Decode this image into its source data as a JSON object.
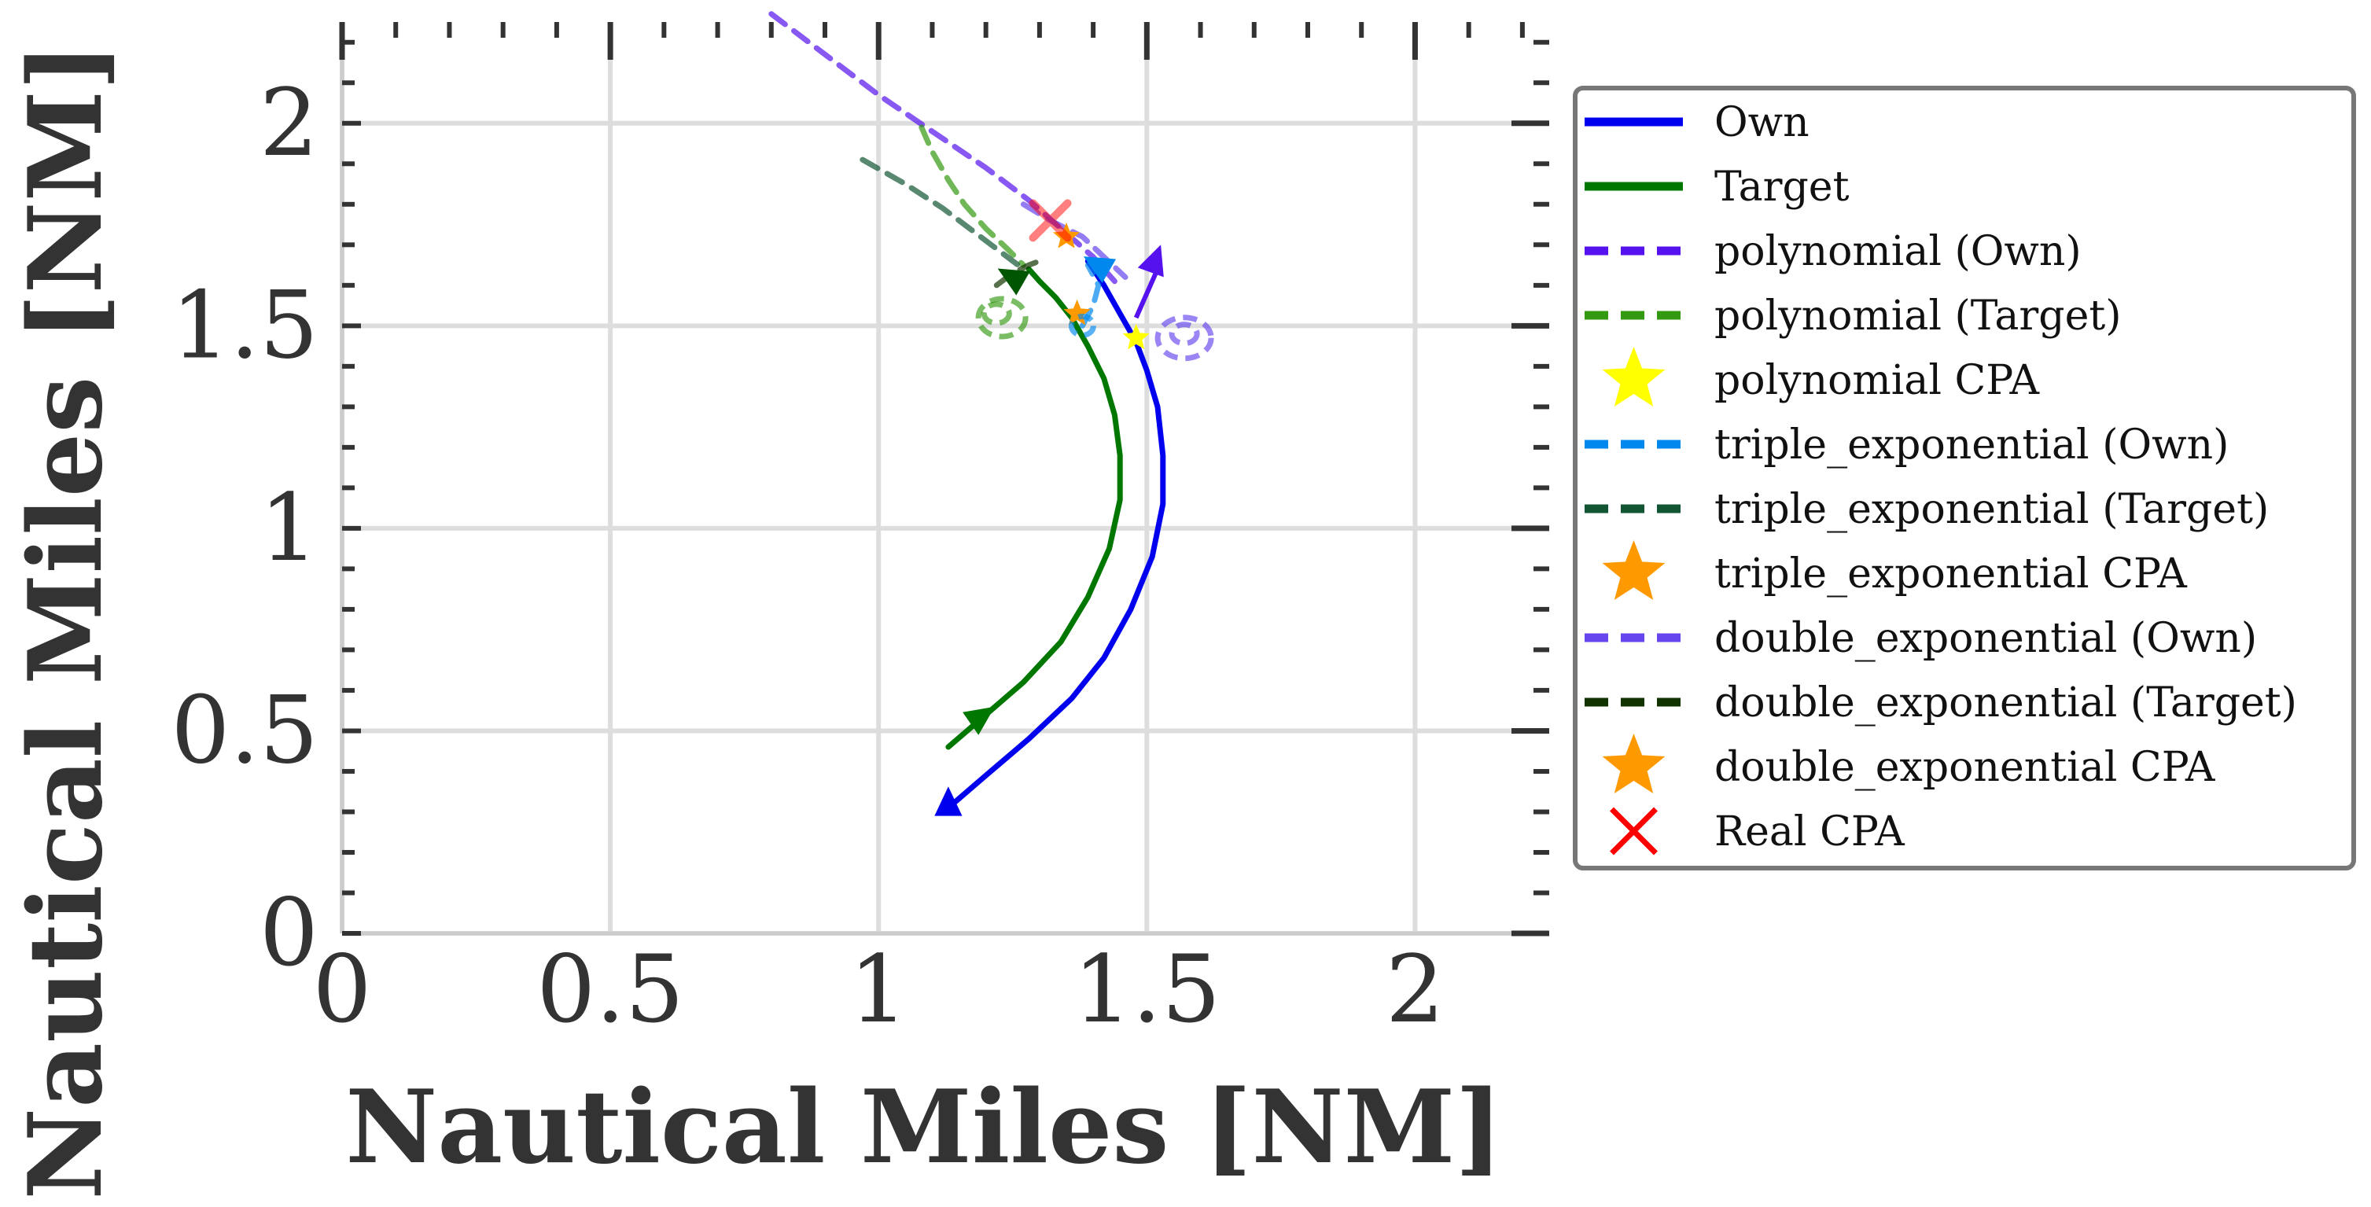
{
  "chart_data": {
    "type": "line",
    "xlabel": "Nautical Miles [NM]",
    "ylabel": "Nautical Miles [NM]",
    "xlim": [
      0,
      2.25
    ],
    "ylim": [
      0,
      2.25
    ],
    "x_ticks": [
      "0",
      "0.5",
      "1",
      "1.5",
      "2"
    ],
    "y_ticks": [
      "0",
      "0.5",
      "1",
      "1.5",
      "2"
    ],
    "grid": true,
    "legend_position": "right, outside plot",
    "series": [
      {
        "name": "Own",
        "color": "#0000ee",
        "style": "solid",
        "x": [
          1.13,
          1.2,
          1.28,
          1.36,
          1.42,
          1.47,
          1.51,
          1.53,
          1.53,
          1.52,
          1.5,
          1.48,
          1.45,
          1.42,
          1.39
        ],
        "y": [
          0.31,
          0.39,
          0.48,
          0.58,
          0.68,
          0.8,
          0.93,
          1.06,
          1.18,
          1.3,
          1.39,
          1.46,
          1.53,
          1.6,
          1.66
        ]
      },
      {
        "name": "Target",
        "color": "#007700",
        "style": "solid",
        "x": [
          1.13,
          1.2,
          1.27,
          1.34,
          1.39,
          1.43,
          1.45,
          1.45,
          1.44,
          1.42,
          1.39,
          1.36,
          1.33,
          1.3,
          1.28
        ],
        "y": [
          0.46,
          0.54,
          0.62,
          0.72,
          0.83,
          0.95,
          1.07,
          1.18,
          1.28,
          1.37,
          1.45,
          1.52,
          1.57,
          1.61,
          1.64
        ]
      },
      {
        "name": "polynomial (Own)",
        "color": "#5511ee",
        "style": "dashed",
        "x": [
          0.8,
          0.9,
          1.0,
          1.1,
          1.2,
          1.28,
          1.34,
          1.4,
          1.44
        ],
        "y": [
          2.27,
          2.17,
          2.07,
          1.98,
          1.89,
          1.81,
          1.74,
          1.67,
          1.61
        ]
      },
      {
        "name": "polynomial (Target)",
        "color": "#339911",
        "style": "dashed",
        "x": [
          1.08,
          1.1,
          1.13,
          1.16,
          1.2,
          1.24,
          1.27
        ],
        "y": [
          1.99,
          1.93,
          1.86,
          1.8,
          1.74,
          1.69,
          1.65
        ]
      },
      {
        "name": "polynomial CPA",
        "color": "#ffff00",
        "marker": "star",
        "x": [
          1.48
        ],
        "y": [
          1.47
        ]
      },
      {
        "name": "triple_exponential (Own)",
        "color": "#0088ee",
        "style": "dashed",
        "x": [
          1.38,
          1.4,
          1.41,
          1.39
        ],
        "y": [
          1.5,
          1.55,
          1.6,
          1.65
        ]
      },
      {
        "name": "triple_exponential (Target)",
        "color": "#115533",
        "style": "dashed",
        "x": [
          0.97,
          1.05,
          1.12,
          1.18,
          1.23,
          1.27
        ],
        "y": [
          1.91,
          1.85,
          1.79,
          1.73,
          1.68,
          1.64
        ]
      },
      {
        "name": "triple_exponential CPA",
        "color": "#ff9900",
        "marker": "star",
        "x": [
          1.37
        ],
        "y": [
          1.53
        ]
      },
      {
        "name": "double_exponential (Own)",
        "color": "#6644ee",
        "style": "dashed",
        "x": [
          1.27,
          1.32,
          1.38,
          1.42,
          1.46
        ],
        "y": [
          1.8,
          1.76,
          1.72,
          1.67,
          1.62
        ]
      },
      {
        "name": "double_exponential (Target)",
        "color": "#113300",
        "style": "dashed",
        "x": [
          1.22,
          1.25,
          1.28,
          1.3
        ],
        "y": [
          1.6,
          1.63,
          1.65,
          1.66
        ]
      },
      {
        "name": "double_exponential CPA",
        "color": "#ff9900",
        "marker": "star",
        "x": [
          1.35
        ],
        "y": [
          1.72
        ]
      },
      {
        "name": "Real CPA",
        "color": "#ff0000",
        "marker": "x",
        "x": [
          1.32
        ],
        "y": [
          1.76
        ]
      }
    ]
  }
}
